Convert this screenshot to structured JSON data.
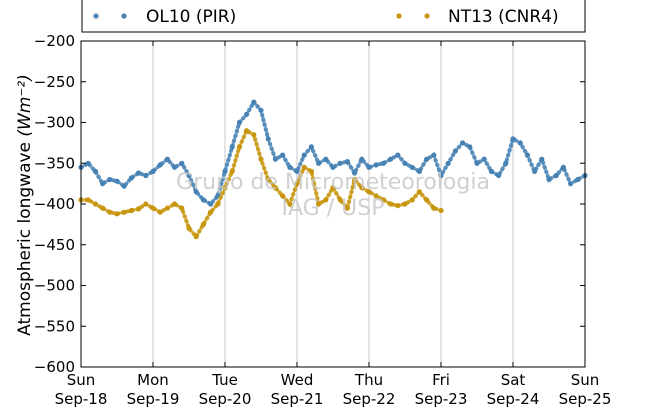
{
  "chart_data": {
    "type": "scatter",
    "ylabel_text": "Atmospheric longwave",
    "ylabel_unit": "(Wm⁻²)",
    "ylim": [
      -600,
      -200
    ],
    "yticks": [
      -200,
      -250,
      -300,
      -350,
      -400,
      -450,
      -500,
      -550,
      -600
    ],
    "xlim": [
      0,
      7
    ],
    "xticks": [
      {
        "pos": 0,
        "day": "Sun",
        "date": "Sep-18"
      },
      {
        "pos": 1,
        "day": "Mon",
        "date": "Sep-19"
      },
      {
        "pos": 2,
        "day": "Tue",
        "date": "Sep-20"
      },
      {
        "pos": 3,
        "day": "Wed",
        "date": "Sep-21"
      },
      {
        "pos": 4,
        "day": "Thu",
        "date": "Sep-22"
      },
      {
        "pos": 5,
        "day": "Fri",
        "date": "Sep-23"
      },
      {
        "pos": 6,
        "day": "Sat",
        "date": "Sep-24"
      },
      {
        "pos": 7,
        "day": "Sun",
        "date": "Sep-25"
      }
    ],
    "grid": "vertical",
    "legend_position": "top",
    "series": [
      {
        "name": "OL10 (PIR)",
        "color": "#4682b4",
        "x": [
          0.0,
          0.1,
          0.2,
          0.3,
          0.4,
          0.5,
          0.6,
          0.7,
          0.8,
          0.9,
          1.0,
          1.1,
          1.2,
          1.3,
          1.4,
          1.5,
          1.6,
          1.7,
          1.8,
          1.9,
          2.0,
          2.1,
          2.2,
          2.3,
          2.4,
          2.5,
          2.6,
          2.7,
          2.8,
          2.9,
          3.0,
          3.1,
          3.2,
          3.3,
          3.4,
          3.5,
          3.6,
          3.7,
          3.8,
          3.9,
          4.0,
          4.1,
          4.2,
          4.3,
          4.4,
          4.5,
          4.6,
          4.7,
          4.8,
          4.9,
          5.0,
          5.1,
          5.2,
          5.3,
          5.4,
          5.5,
          5.6,
          5.7,
          5.8,
          5.9,
          6.0,
          6.1,
          6.2,
          6.3,
          6.4,
          6.5,
          6.6,
          6.7,
          6.8,
          6.9,
          7.0
        ],
        "y": [
          -355,
          -350,
          -360,
          -375,
          -370,
          -372,
          -378,
          -368,
          -362,
          -365,
          -360,
          -352,
          -345,
          -355,
          -350,
          -365,
          -385,
          -395,
          -400,
          -390,
          -360,
          -330,
          -300,
          -290,
          -275,
          -285,
          -320,
          -345,
          -340,
          -355,
          -360,
          -340,
          -330,
          -350,
          -345,
          -355,
          -350,
          -348,
          -362,
          -345,
          -355,
          -352,
          -350,
          -345,
          -340,
          -350,
          -355,
          -360,
          -345,
          -340,
          -365,
          -350,
          -335,
          -325,
          -330,
          -350,
          -345,
          -360,
          -365,
          -350,
          -320,
          -325,
          -340,
          -360,
          -345,
          -370,
          -365,
          -355,
          -375,
          -370,
          -365
        ]
      },
      {
        "name": "NT13 (CNR4)",
        "color": "#c8960c",
        "x": [
          0.0,
          0.1,
          0.2,
          0.3,
          0.4,
          0.5,
          0.6,
          0.7,
          0.8,
          0.9,
          1.0,
          1.1,
          1.2,
          1.3,
          1.4,
          1.5,
          1.6,
          1.7,
          1.8,
          1.9,
          2.0,
          2.1,
          2.2,
          2.3,
          2.4,
          2.5,
          2.6,
          2.7,
          2.8,
          2.9,
          3.0,
          3.1,
          3.2,
          3.3,
          3.4,
          3.5,
          3.6,
          3.7,
          3.8,
          3.9,
          4.0,
          4.1,
          4.2,
          4.3,
          4.4,
          4.5,
          4.6,
          4.7,
          4.8,
          4.9,
          5.0
        ],
        "y": [
          -395,
          -395,
          -400,
          -405,
          -410,
          -412,
          -410,
          -408,
          -406,
          -400,
          -405,
          -410,
          -405,
          -400,
          -405,
          -430,
          -440,
          -425,
          -410,
          -400,
          -380,
          -360,
          -330,
          -310,
          -315,
          -345,
          -370,
          -380,
          -390,
          -400,
          -375,
          -355,
          -360,
          -400,
          -395,
          -380,
          -395,
          -405,
          -370,
          -380,
          -385,
          -390,
          -395,
          -400,
          -402,
          -400,
          -395,
          -385,
          -395,
          -405,
          -408
        ]
      }
    ]
  },
  "watermark": {
    "line1": "Grupo de Micrometeorologia",
    "line2": "IAG / USP"
  }
}
